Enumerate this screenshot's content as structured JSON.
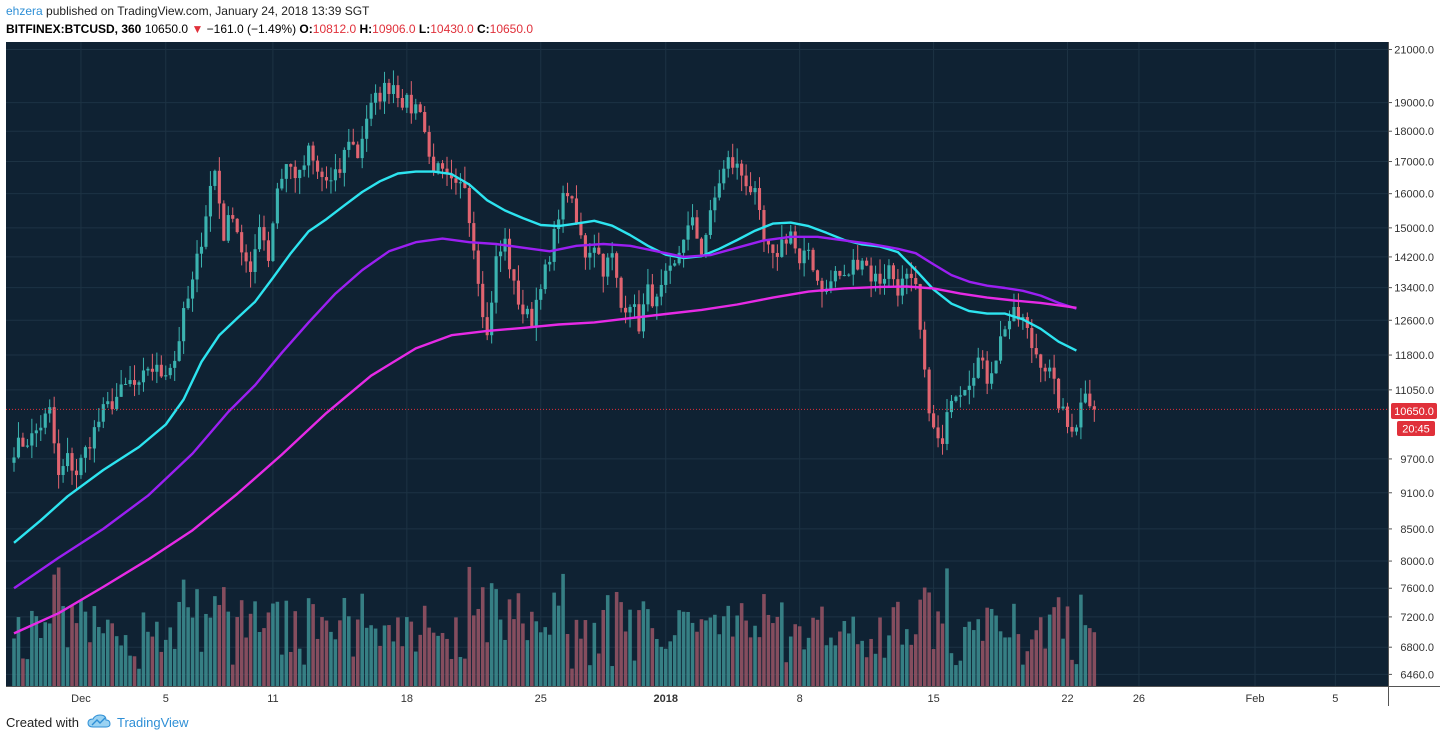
{
  "header": {
    "user": "ehzera",
    "published": "published on TradingView.com, January 24, 2018 13:39 SGT",
    "symbol": "BITFINEX:BTCUSD, 360",
    "last": "10650.0",
    "change": "−161.0 (−1.49%)",
    "o_label": "O:",
    "o": "10812.0",
    "h_label": "H:",
    "h": "10906.0",
    "l_label": "L:",
    "l": "10430.0",
    "c_label": "C:",
    "c": "10650.0"
  },
  "footer": {
    "created": "Created with",
    "brand": "TradingView"
  },
  "colors": {
    "bg": "#0f2233",
    "up": "#3bb3b0",
    "down": "#e06470",
    "ma_fast": "#2de4f0",
    "ma_mid": "#9b1ff2",
    "ma_slow": "#e62ae6",
    "last_line": "#e0303a"
  },
  "chart_data": {
    "type": "candlestick",
    "y_ticks": [
      "21000.0",
      "19000.0",
      "18000.0",
      "17000.0",
      "16000.0",
      "15000.0",
      "14200.0",
      "13400.0",
      "12600.0",
      "11800.0",
      "11050.0",
      "9700.0",
      "9100.0",
      "8500.0",
      "8000.0",
      "7600.0",
      "7200.0",
      "6800.0",
      "6460.0"
    ],
    "y_tick_values": [
      21000,
      19000,
      18000,
      17000,
      16000,
      15000,
      14200,
      13400,
      12600,
      11800,
      11050,
      9700,
      9100,
      8500,
      8000,
      7600,
      7200,
      6800,
      6460
    ],
    "y_scale": "log",
    "ylim": [
      6320,
      21300
    ],
    "x_ticks": [
      "Dec",
      "5",
      "11",
      "18",
      "25",
      "2018",
      "8",
      "15",
      "22",
      "26",
      "Feb",
      "5"
    ],
    "x_tick_bars": [
      15,
      34,
      58,
      88,
      118,
      146,
      176,
      206,
      236,
      252,
      278,
      296
    ],
    "x_bar_range": [
      0,
      306
    ],
    "last_price_label": "10650.0",
    "countdown_label": "20:45",
    "last_price": 10650,
    "anchors": [
      [
        0,
        9900
      ],
      [
        4,
        10100
      ],
      [
        8,
        10600
      ],
      [
        10,
        9350
      ],
      [
        12,
        9700
      ],
      [
        14,
        9450
      ],
      [
        17,
        10050
      ],
      [
        20,
        10600
      ],
      [
        23,
        10900
      ],
      [
        26,
        11200
      ],
      [
        28,
        11050
      ],
      [
        30,
        11550
      ],
      [
        33,
        11400
      ],
      [
        36,
        11700
      ],
      [
        38,
        12700
      ],
      [
        40,
        13500
      ],
      [
        42,
        14700
      ],
      [
        44,
        16200
      ],
      [
        45,
        16700
      ],
      [
        47,
        14800
      ],
      [
        49,
        15500
      ],
      [
        51,
        14400
      ],
      [
        53,
        13600
      ],
      [
        55,
        15200
      ],
      [
        57,
        14200
      ],
      [
        59,
        16200
      ],
      [
        61,
        16900
      ],
      [
        64,
        16500
      ],
      [
        66,
        17300
      ],
      [
        68,
        16600
      ],
      [
        71,
        16300
      ],
      [
        73,
        16700
      ],
      [
        75,
        17800
      ],
      [
        77,
        17200
      ],
      [
        79,
        18500
      ],
      [
        81,
        19100
      ],
      [
        83,
        19500
      ],
      [
        85,
        19700
      ],
      [
        87,
        19100
      ],
      [
        89,
        18800
      ],
      [
        91,
        18900
      ],
      [
        93,
        17100
      ],
      [
        95,
        16700
      ],
      [
        97,
        16400
      ],
      [
        99,
        16100
      ],
      [
        101,
        16300
      ],
      [
        103,
        14500
      ],
      [
        105,
        12900
      ],
      [
        106,
        12200
      ],
      [
        108,
        14100
      ],
      [
        110,
        14600
      ],
      [
        112,
        13400
      ],
      [
        114,
        12800
      ],
      [
        116,
        12600
      ],
      [
        118,
        13600
      ],
      [
        120,
        14000
      ],
      [
        122,
        15500
      ],
      [
        124,
        16100
      ],
      [
        126,
        15100
      ],
      [
        128,
        14300
      ],
      [
        130,
        14600
      ],
      [
        132,
        13900
      ],
      [
        134,
        14200
      ],
      [
        136,
        12900
      ],
      [
        138,
        13100
      ],
      [
        140,
        12500
      ],
      [
        142,
        13300
      ],
      [
        144,
        13000
      ],
      [
        146,
        13600
      ],
      [
        148,
        13900
      ],
      [
        150,
        14800
      ],
      [
        152,
        15100
      ],
      [
        154,
        14400
      ],
      [
        156,
        15300
      ],
      [
        158,
        16400
      ],
      [
        160,
        17000
      ],
      [
        162,
        16800
      ],
      [
        164,
        16400
      ],
      [
        166,
        15900
      ],
      [
        168,
        14600
      ],
      [
        170,
        14100
      ],
      [
        172,
        14600
      ],
      [
        174,
        14900
      ],
      [
        176,
        13900
      ],
      [
        178,
        14400
      ],
      [
        180,
        13600
      ],
      [
        182,
        13300
      ],
      [
        184,
        13800
      ],
      [
        186,
        13600
      ],
      [
        188,
        14000
      ],
      [
        190,
        14200
      ],
      [
        192,
        13700
      ],
      [
        194,
        13600
      ],
      [
        196,
        13900
      ],
      [
        198,
        13400
      ],
      [
        200,
        13600
      ],
      [
        202,
        13300
      ],
      [
        203,
        12300
      ],
      [
        204,
        11300
      ],
      [
        206,
        10200
      ],
      [
        208,
        9900
      ],
      [
        210,
        11000
      ],
      [
        212,
        11100
      ],
      [
        214,
        11300
      ],
      [
        216,
        11700
      ],
      [
        218,
        11300
      ],
      [
        220,
        11800
      ],
      [
        222,
        12500
      ],
      [
        224,
        12700
      ],
      [
        226,
        12600
      ],
      [
        228,
        12000
      ],
      [
        230,
        11700
      ],
      [
        232,
        11400
      ],
      [
        234,
        10800
      ],
      [
        236,
        10300
      ],
      [
        238,
        10400
      ],
      [
        240,
        11100
      ],
      [
        242,
        10650
      ]
    ],
    "series": [
      {
        "name": "",
        "color": "#2de4f0",
        "points": [
          [
            0,
            8280
          ],
          [
            6,
            8640
          ],
          [
            12,
            9040
          ],
          [
            20,
            9500
          ],
          [
            28,
            9920
          ],
          [
            34,
            10350
          ],
          [
            38,
            10850
          ],
          [
            42,
            11650
          ],
          [
            46,
            12250
          ],
          [
            50,
            12650
          ],
          [
            54,
            13050
          ],
          [
            58,
            13650
          ],
          [
            62,
            14300
          ],
          [
            66,
            14900
          ],
          [
            70,
            15250
          ],
          [
            74,
            15650
          ],
          [
            78,
            16050
          ],
          [
            82,
            16380
          ],
          [
            86,
            16620
          ],
          [
            90,
            16680
          ],
          [
            94,
            16680
          ],
          [
            98,
            16600
          ],
          [
            102,
            16280
          ],
          [
            106,
            15800
          ],
          [
            110,
            15500
          ],
          [
            114,
            15280
          ],
          [
            118,
            15080
          ],
          [
            122,
            15050
          ],
          [
            126,
            15120
          ],
          [
            130,
            15200
          ],
          [
            134,
            15060
          ],
          [
            138,
            14800
          ],
          [
            142,
            14500
          ],
          [
            146,
            14260
          ],
          [
            150,
            14170
          ],
          [
            154,
            14220
          ],
          [
            158,
            14420
          ],
          [
            162,
            14660
          ],
          [
            166,
            14920
          ],
          [
            170,
            15120
          ],
          [
            174,
            15150
          ],
          [
            178,
            15050
          ],
          [
            182,
            14860
          ],
          [
            186,
            14660
          ],
          [
            190,
            14540
          ],
          [
            194,
            14480
          ],
          [
            198,
            14330
          ],
          [
            202,
            13850
          ],
          [
            206,
            13350
          ],
          [
            210,
            13000
          ],
          [
            214,
            12820
          ],
          [
            218,
            12760
          ],
          [
            222,
            12760
          ],
          [
            226,
            12620
          ],
          [
            230,
            12400
          ],
          [
            234,
            12100
          ],
          [
            238,
            11900
          ]
        ]
      },
      {
        "name": "",
        "color": "#9b1ff2",
        "points": [
          [
            0,
            7600
          ],
          [
            10,
            8050
          ],
          [
            20,
            8500
          ],
          [
            30,
            9050
          ],
          [
            40,
            9800
          ],
          [
            48,
            10600
          ],
          [
            54,
            11150
          ],
          [
            60,
            11850
          ],
          [
            66,
            12550
          ],
          [
            72,
            13250
          ],
          [
            78,
            13850
          ],
          [
            84,
            14350
          ],
          [
            90,
            14600
          ],
          [
            96,
            14700
          ],
          [
            102,
            14600
          ],
          [
            108,
            14550
          ],
          [
            114,
            14450
          ],
          [
            120,
            14350
          ],
          [
            126,
            14500
          ],
          [
            132,
            14550
          ],
          [
            138,
            14500
          ],
          [
            144,
            14350
          ],
          [
            150,
            14200
          ],
          [
            156,
            14250
          ],
          [
            162,
            14450
          ],
          [
            168,
            14650
          ],
          [
            174,
            14750
          ],
          [
            180,
            14750
          ],
          [
            186,
            14650
          ],
          [
            192,
            14550
          ],
          [
            198,
            14420
          ],
          [
            202,
            14300
          ],
          [
            206,
            14000
          ],
          [
            210,
            13720
          ],
          [
            214,
            13550
          ],
          [
            218,
            13450
          ],
          [
            222,
            13390
          ],
          [
            226,
            13320
          ],
          [
            230,
            13200
          ],
          [
            234,
            13020
          ],
          [
            238,
            12880
          ]
        ]
      },
      {
        "name": "",
        "color": "#e62ae6",
        "points": [
          [
            0,
            6980
          ],
          [
            10,
            7250
          ],
          [
            20,
            7620
          ],
          [
            30,
            8020
          ],
          [
            40,
            8480
          ],
          [
            50,
            9080
          ],
          [
            60,
            9780
          ],
          [
            70,
            10580
          ],
          [
            80,
            11350
          ],
          [
            90,
            11950
          ],
          [
            98,
            12250
          ],
          [
            106,
            12350
          ],
          [
            114,
            12420
          ],
          [
            122,
            12500
          ],
          [
            130,
            12550
          ],
          [
            138,
            12650
          ],
          [
            146,
            12750
          ],
          [
            154,
            12850
          ],
          [
            162,
            12980
          ],
          [
            170,
            13150
          ],
          [
            178,
            13300
          ],
          [
            186,
            13380
          ],
          [
            194,
            13420
          ],
          [
            200,
            13430
          ],
          [
            206,
            13380
          ],
          [
            212,
            13250
          ],
          [
            218,
            13150
          ],
          [
            224,
            13080
          ],
          [
            230,
            13020
          ],
          [
            234,
            12960
          ],
          [
            238,
            12900
          ]
        ]
      }
    ]
  }
}
